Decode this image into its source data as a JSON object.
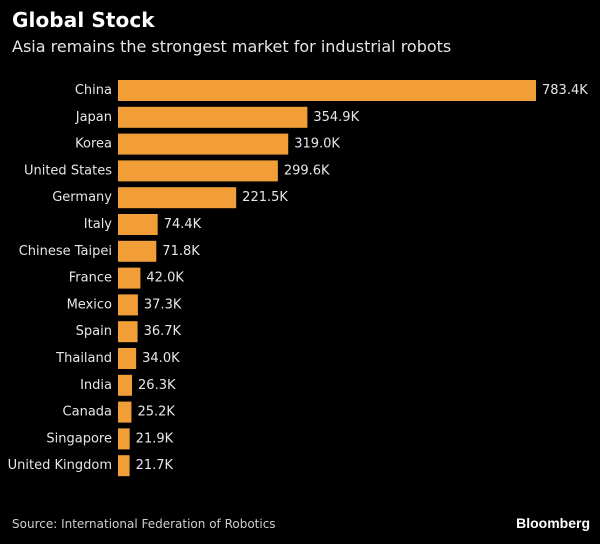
{
  "header": {
    "title": "Global Stock",
    "subtitle": "Asia remains the strongest market for industrial robots"
  },
  "footer": {
    "source": "Source: International Federation of Robotics",
    "brand": "Bloomberg"
  },
  "colors": {
    "bar": "#f19e38",
    "background": "#000000",
    "text": "#e6e6e6"
  },
  "chart_data": {
    "type": "bar",
    "orientation": "horizontal",
    "title": "Global Stock",
    "subtitle": "Asia remains the strongest market for industrial robots",
    "categories": [
      "China",
      "Japan",
      "Korea",
      "United States",
      "Germany",
      "Italy",
      "Chinese Taipei",
      "France",
      "Mexico",
      "Spain",
      "Thailand",
      "India",
      "Canada",
      "Singapore",
      "United Kingdom"
    ],
    "values": [
      783.4,
      354.9,
      319.0,
      299.6,
      221.5,
      74.4,
      71.8,
      42.0,
      37.3,
      36.7,
      34.0,
      26.3,
      25.2,
      21.9,
      21.7
    ],
    "value_labels": [
      "783.4K",
      "354.9K",
      "319.0K",
      "299.6K",
      "221.5K",
      "74.4K",
      "71.8K",
      "42.0K",
      "37.3K",
      "36.7K",
      "34.0K",
      "26.3K",
      "25.2K",
      "21.9K",
      "21.7K"
    ],
    "xlabel": "",
    "ylabel": "",
    "xlim": [
      0,
      783.4
    ],
    "grid": false,
    "legend": "none"
  }
}
